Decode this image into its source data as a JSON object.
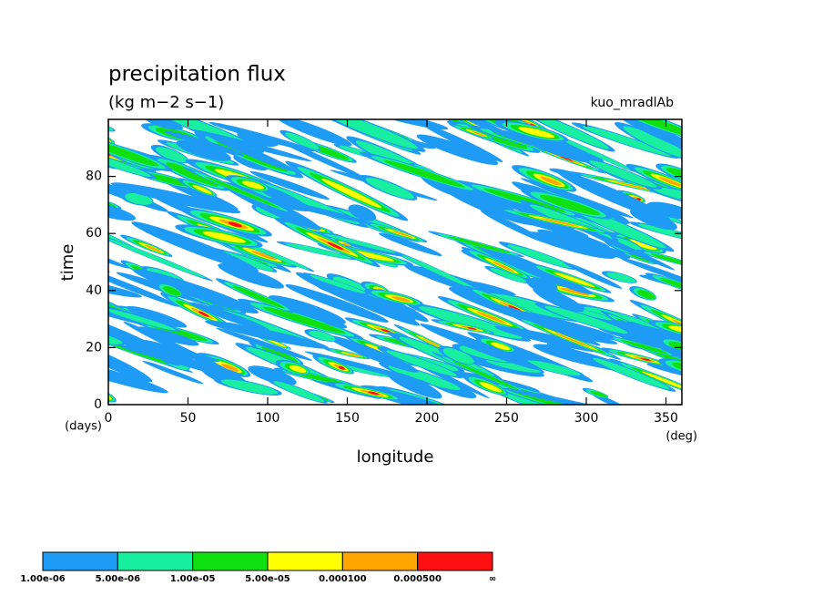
{
  "chart_data": {
    "type": "contour",
    "title": "precipitation flux",
    "subtitle": "(kg m−2 s−1)",
    "annotation": "kuo_mradlAb",
    "x_label": "longitude",
    "x_unit": "(deg)",
    "y_label": "time",
    "y_unit": "(days)",
    "xlim": [
      0,
      360
    ],
    "xticks": [
      0,
      50,
      100,
      150,
      200,
      250,
      300,
      350
    ],
    "ylim": [
      0,
      100
    ],
    "yticks": [
      0,
      20,
      40,
      60,
      80
    ],
    "colorbar": {
      "colors": [
        "#1e9cf5",
        "#18f0a0",
        "#10e010",
        "#ffff00",
        "#ffa500",
        "#ff1010"
      ],
      "levels": [
        {
          "value": 1e-06,
          "label": "1.00e-06"
        },
        {
          "value": 5e-06,
          "label": "5.00e-06"
        },
        {
          "value": 1e-05,
          "label": "1.00e-05"
        },
        {
          "value": 5e-05,
          "label": "5.00e-05"
        },
        {
          "value": 0.0001,
          "label": "0.000100"
        },
        {
          "value": 0.0005,
          "label": "0.000500"
        }
      ],
      "top_label": "∞"
    }
  }
}
